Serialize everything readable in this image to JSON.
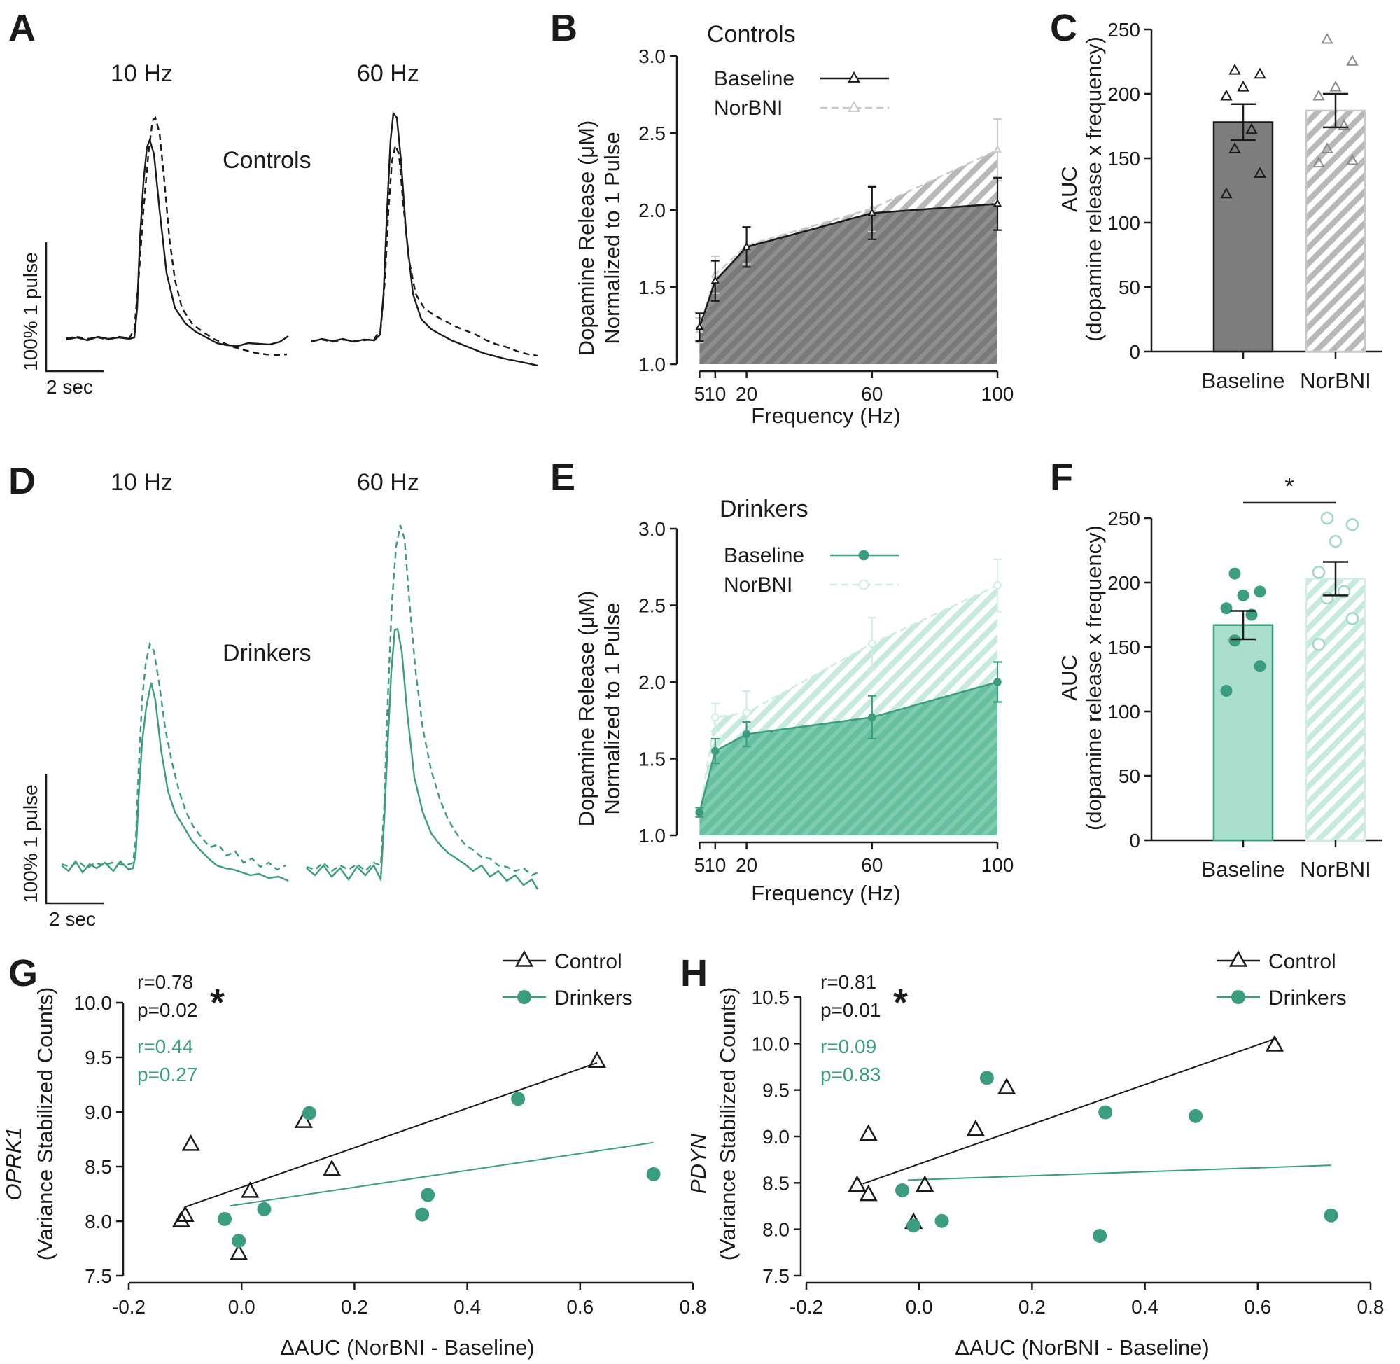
{
  "panel_labels": [
    "A",
    "B",
    "C",
    "D",
    "E",
    "F",
    "G",
    "H"
  ],
  "colors": {
    "black": "#1a1a1a",
    "gray": "#8a8a8a",
    "gray_light": "#c8c8c8",
    "green": "#3a9e7e",
    "green_fill": "#a9dfcc",
    "green_light": "#cfeee3"
  },
  "traces": {
    "controls": {
      "label": "Controls",
      "freq_labels": [
        "10 Hz",
        "60 Hz"
      ],
      "scale_y": "100% 1 pulse",
      "scale_x": "2 sec"
    },
    "drinkers": {
      "label": "Drinkers",
      "freq_labels": [
        "10 Hz",
        "60 Hz"
      ],
      "scale_y": "100% 1 pulse",
      "scale_x": "2 sec"
    }
  },
  "chart_data": [
    {
      "id": "B",
      "type": "area",
      "title": "Controls",
      "x": [
        5,
        10,
        20,
        60,
        100
      ],
      "xlabel": "Frequency (Hz)",
      "ylabel": [
        "Dopamine Release (μM)",
        "Normalized to 1 Pulse"
      ],
      "ylim": [
        1.0,
        3.0
      ],
      "yticks": [
        "1.0",
        "1.5",
        "2.0",
        "2.5",
        "3.0"
      ],
      "xticks": [
        "5",
        "10",
        "20",
        "60",
        "100"
      ],
      "series": [
        {
          "name": "Baseline",
          "values": [
            1.24,
            1.54,
            1.76,
            1.98,
            2.04
          ],
          "errors": [
            0.09,
            0.13,
            0.13,
            0.17,
            0.17
          ]
        },
        {
          "name": "NorBNI",
          "values": [
            1.22,
            1.58,
            1.77,
            2.01,
            2.39
          ],
          "errors": [
            0.08,
            0.12,
            0.12,
            0.15,
            0.2
          ]
        }
      ]
    },
    {
      "id": "C",
      "type": "bar",
      "categories": [
        "Baseline",
        "NorBNI"
      ],
      "values": [
        178,
        187
      ],
      "errors": [
        14,
        13
      ],
      "ylabel": [
        "AUC",
        "(dopamine release x frequency)"
      ],
      "ylim": [
        0,
        250
      ],
      "yticks": [
        "0",
        "50",
        "100",
        "150",
        "200",
        "250"
      ],
      "points": [
        [
          122,
          138,
          157,
          172,
          198,
          205,
          215,
          218
        ],
        [
          146,
          148,
          157,
          175,
          198,
          205,
          225,
          242
        ]
      ]
    },
    {
      "id": "E",
      "type": "area",
      "title": "Drinkers",
      "x": [
        5,
        10,
        20,
        60,
        100
      ],
      "xlabel": "Frequency (Hz)",
      "ylabel": [
        "Dopamine Release (μM)",
        "Normalized to 1 Pulse"
      ],
      "ylim": [
        1.0,
        3.0
      ],
      "yticks": [
        "1.0",
        "1.5",
        "2.0",
        "2.5",
        "3.0"
      ],
      "xticks": [
        "5",
        "10",
        "20",
        "60",
        "100"
      ],
      "series": [
        {
          "name": "Baseline",
          "values": [
            1.15,
            1.55,
            1.66,
            1.77,
            2.0
          ],
          "errors": [
            0.03,
            0.08,
            0.08,
            0.14,
            0.13
          ]
        },
        {
          "name": "NorBNI",
          "values": [
            1.15,
            1.77,
            1.8,
            2.25,
            2.63
          ],
          "errors": [
            0.03,
            0.09,
            0.14,
            0.17,
            0.17
          ]
        }
      ]
    },
    {
      "id": "F",
      "type": "bar",
      "categories": [
        "Baseline",
        "NorBNI"
      ],
      "values": [
        167,
        203
      ],
      "errors": [
        11,
        13
      ],
      "ylabel": [
        "AUC",
        "(dopamine release x frequency)"
      ],
      "ylim": [
        0,
        250
      ],
      "yticks": [
        "0",
        "50",
        "100",
        "150",
        "200",
        "250"
      ],
      "significance": "*",
      "points": [
        [
          116,
          135,
          155,
          175,
          180,
          190,
          193,
          207
        ],
        [
          152,
          172,
          188,
          193,
          208,
          232,
          245,
          250
        ]
      ]
    },
    {
      "id": "G",
      "type": "scatter",
      "xlabel": "ΔAUC (NorBNI - Baseline)",
      "ylabel_gene": "OPRK1",
      "ylabel": "(Variance Stabilized Counts)",
      "xlim": [
        -0.2,
        0.8
      ],
      "ylim": [
        7.5,
        10.0
      ],
      "xticks": [
        "-0.2",
        "0.0",
        "0.2",
        "0.4",
        "0.6",
        "0.8"
      ],
      "yticks": [
        "7.5",
        "8.0",
        "8.5",
        "9.0",
        "9.5",
        "10.0"
      ],
      "series": [
        {
          "name": "Control",
          "r": "r=0.78",
          "p": "p=0.02",
          "sig": "*",
          "points": [
            [
              -0.107,
              8.0
            ],
            [
              -0.1,
              8.05
            ],
            [
              -0.09,
              8.7
            ],
            [
              -0.005,
              7.7
            ],
            [
              0.015,
              8.27
            ],
            [
              0.11,
              8.91
            ],
            [
              0.16,
              8.47
            ],
            [
              0.63,
              9.46
            ]
          ],
          "fit": [
            [
              -0.1,
              8.13
            ],
            [
              0.63,
              9.45
            ]
          ]
        },
        {
          "name": "Drinkers",
          "r": "r=0.44",
          "p": "p=0.27",
          "points": [
            [
              -0.03,
              8.02
            ],
            [
              -0.005,
              7.82
            ],
            [
              0.04,
              8.11
            ],
            [
              0.12,
              8.99
            ],
            [
              0.32,
              8.06
            ],
            [
              0.33,
              8.24
            ],
            [
              0.49,
              9.12
            ],
            [
              0.73,
              8.43
            ]
          ],
          "fit": [
            [
              -0.02,
              8.14
            ],
            [
              0.73,
              8.72
            ]
          ]
        }
      ]
    },
    {
      "id": "H",
      "type": "scatter",
      "xlabel": "ΔAUC (NorBNI - Baseline)",
      "ylabel_gene": "PDYN",
      "ylabel": "(Variance Stabilized Counts)",
      "xlim": [
        -0.2,
        0.8
      ],
      "ylim": [
        7.5,
        10.5
      ],
      "xticks": [
        "-0.2",
        "0.0",
        "0.2",
        "0.4",
        "0.6",
        "0.8"
      ],
      "yticks": [
        "7.5",
        "8.0",
        "8.5",
        "9.0",
        "9.5",
        "10.0",
        "10.5"
      ],
      "series": [
        {
          "name": "Control",
          "r": "r=0.81",
          "p": "p=0.01",
          "sig": "*",
          "points": [
            [
              -0.11,
              8.47
            ],
            [
              -0.09,
              8.37
            ],
            [
              -0.09,
              9.02
            ],
            [
              -0.01,
              8.07
            ],
            [
              0.01,
              8.47
            ],
            [
              0.1,
              9.07
            ],
            [
              0.155,
              9.52
            ],
            [
              0.63,
              9.98
            ]
          ],
          "fit": [
            [
              -0.1,
              8.49
            ],
            [
              0.63,
              10.05
            ]
          ]
        },
        {
          "name": "Drinkers",
          "r": "r=0.09",
          "p": "p=0.83",
          "points": [
            [
              -0.03,
              8.42
            ],
            [
              -0.01,
              8.04
            ],
            [
              0.04,
              8.09
            ],
            [
              0.12,
              9.63
            ],
            [
              0.32,
              7.93
            ],
            [
              0.33,
              9.26
            ],
            [
              0.49,
              9.22
            ],
            [
              0.73,
              8.15
            ]
          ],
          "fit": [
            [
              -0.02,
              8.53
            ],
            [
              0.73,
              8.69
            ]
          ]
        }
      ]
    }
  ]
}
